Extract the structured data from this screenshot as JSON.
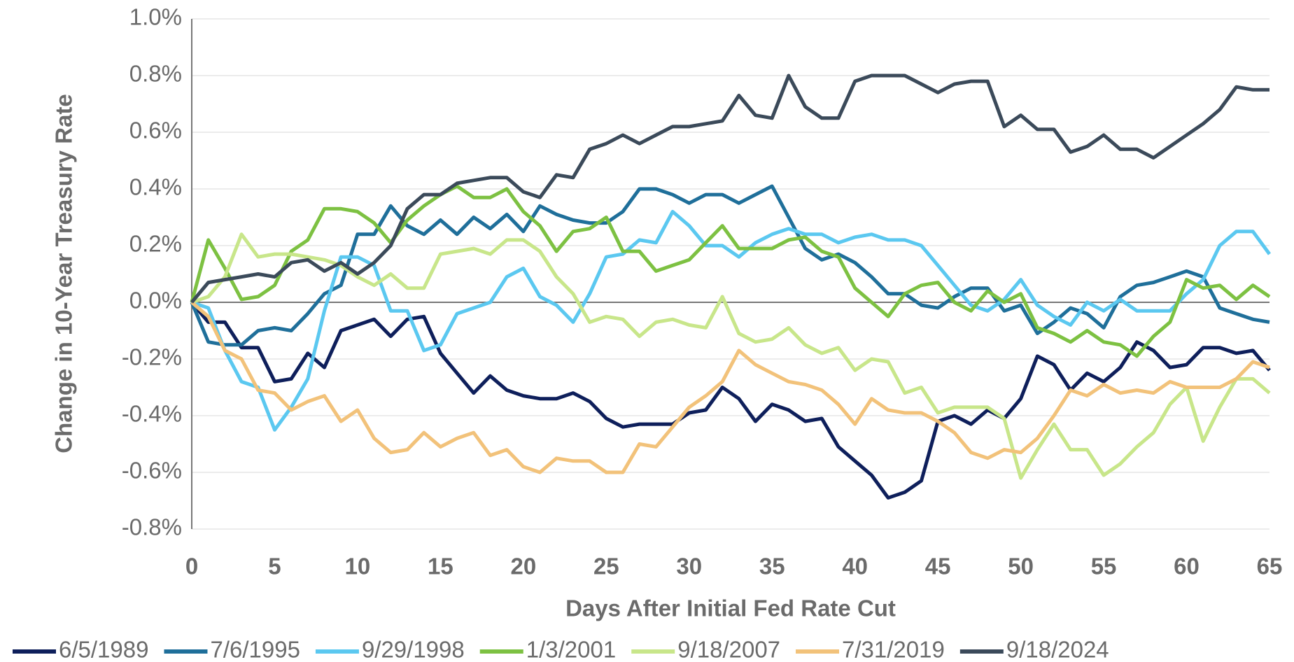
{
  "chart_data": {
    "type": "line",
    "x_label": "Days After Initial Fed Rate Cut",
    "y_label": "Change in 10-Year Treasury Rate",
    "x": [
      0,
      1,
      2,
      3,
      4,
      5,
      6,
      7,
      8,
      9,
      10,
      11,
      12,
      13,
      14,
      15,
      16,
      17,
      18,
      19,
      20,
      21,
      22,
      23,
      24,
      25,
      26,
      27,
      28,
      29,
      30,
      31,
      32,
      33,
      34,
      35,
      36,
      37,
      38,
      39,
      40,
      41,
      42,
      43,
      44,
      45,
      46,
      47,
      48,
      49,
      50,
      51,
      52,
      53,
      54,
      55,
      56,
      57,
      58,
      59,
      60,
      61,
      62,
      63,
      64,
      65
    ],
    "xlim": [
      0,
      65
    ],
    "xticks": [
      0,
      5,
      10,
      15,
      20,
      25,
      30,
      35,
      40,
      45,
      50,
      55,
      60,
      65
    ],
    "ylim": [
      -0.8,
      1.0
    ],
    "yticks": [
      {
        "value": -0.8,
        "label": "-0.8%"
      },
      {
        "value": -0.6,
        "label": "-0.6%"
      },
      {
        "value": -0.4,
        "label": "-0.4%"
      },
      {
        "value": -0.2,
        "label": "-0.2%"
      },
      {
        "value": 0,
        "label": "0.0%"
      },
      {
        "value": 0.2,
        "label": "0.2%"
      },
      {
        "value": 0.4,
        "label": "0.4%"
      },
      {
        "value": 0.6,
        "label": "0.6%"
      },
      {
        "value": 0.8,
        "label": "0.8%"
      },
      {
        "value": 1.0,
        "label": "1.0%"
      }
    ],
    "grid": true,
    "legend": "bottom",
    "series": [
      {
        "name": "6/5/1989",
        "color": "#0e1f5b",
        "values": [
          0,
          -0.07,
          -0.07,
          -0.16,
          -0.16,
          -0.28,
          -0.27,
          -0.18,
          -0.23,
          -0.1,
          -0.08,
          -0.06,
          -0.12,
          -0.06,
          -0.05,
          -0.18,
          -0.25,
          -0.32,
          -0.26,
          -0.31,
          -0.33,
          -0.34,
          -0.34,
          -0.32,
          -0.35,
          -0.41,
          -0.44,
          -0.43,
          -0.43,
          -0.43,
          -0.39,
          -0.38,
          -0.3,
          -0.34,
          -0.42,
          -0.36,
          -0.38,
          -0.42,
          -0.41,
          -0.51,
          -0.56,
          -0.61,
          -0.69,
          -0.67,
          -0.63,
          -0.42,
          -0.4,
          -0.43,
          -0.38,
          -0.41,
          -0.34,
          -0.19,
          -0.22,
          -0.31,
          -0.25,
          -0.28,
          -0.23,
          -0.14,
          -0.17,
          -0.23,
          -0.22,
          -0.16,
          -0.16,
          -0.18,
          -0.17,
          -0.24
        ]
      },
      {
        "name": "7/6/1995",
        "color": "#1f6f9a",
        "values": [
          0,
          -0.14,
          -0.15,
          -0.15,
          -0.1,
          -0.09,
          -0.1,
          -0.04,
          0.03,
          0.06,
          0.24,
          0.24,
          0.34,
          0.27,
          0.24,
          0.29,
          0.24,
          0.3,
          0.26,
          0.31,
          0.25,
          0.34,
          0.31,
          0.29,
          0.28,
          0.28,
          0.32,
          0.4,
          0.4,
          0.38,
          0.35,
          0.38,
          0.38,
          0.35,
          0.38,
          0.41,
          0.3,
          0.19,
          0.15,
          0.17,
          0.14,
          0.09,
          0.03,
          0.03,
          -0.01,
          -0.02,
          0.02,
          0.05,
          0.05,
          -0.03,
          -0.01,
          -0.11,
          -0.07,
          -0.02,
          -0.04,
          -0.09,
          0.02,
          0.06,
          0.07,
          0.09,
          0.11,
          0.09,
          -0.02,
          -0.04,
          -0.06,
          -0.07
        ]
      },
      {
        "name": "9/29/1998",
        "color": "#5bc8f0",
        "values": [
          0,
          -0.02,
          -0.17,
          -0.28,
          -0.3,
          -0.45,
          -0.37,
          -0.27,
          -0.03,
          0.16,
          0.16,
          0.13,
          -0.03,
          -0.03,
          -0.17,
          -0.15,
          -0.04,
          -0.02,
          0.0,
          0.09,
          0.12,
          0.02,
          -0.01,
          -0.07,
          0.03,
          0.16,
          0.17,
          0.22,
          0.21,
          0.32,
          0.27,
          0.2,
          0.2,
          0.16,
          0.21,
          0.24,
          0.26,
          0.24,
          0.24,
          0.21,
          0.23,
          0.24,
          0.22,
          0.22,
          0.2,
          0.13,
          0.06,
          -0.01,
          -0.03,
          0.01,
          0.08,
          -0.01,
          -0.05,
          -0.08,
          0.0,
          -0.03,
          0.01,
          -0.03,
          -0.03,
          -0.03,
          0.03,
          0.08,
          0.2,
          0.25,
          0.25,
          0.17
        ]
      },
      {
        "name": "1/3/2001",
        "color": "#7dc142",
        "values": [
          0,
          0.22,
          0.12,
          0.01,
          0.02,
          0.06,
          0.18,
          0.22,
          0.33,
          0.33,
          0.32,
          0.28,
          0.21,
          0.29,
          0.34,
          0.38,
          0.41,
          0.37,
          0.37,
          0.4,
          0.32,
          0.27,
          0.18,
          0.25,
          0.26,
          0.3,
          0.18,
          0.18,
          0.11,
          0.13,
          0.15,
          0.21,
          0.27,
          0.19,
          0.19,
          0.19,
          0.22,
          0.23,
          0.18,
          0.16,
          0.05,
          0.0,
          -0.05,
          0.03,
          0.06,
          0.07,
          0.0,
          -0.03,
          0.04,
          0.0,
          0.03,
          -0.09,
          -0.11,
          -0.14,
          -0.1,
          -0.14,
          -0.15,
          -0.19,
          -0.12,
          -0.07,
          0.08,
          0.05,
          0.06,
          0.01,
          0.06,
          0.02
        ]
      },
      {
        "name": "9/18/2007",
        "color": "#c8e68a",
        "values": [
          0,
          0.02,
          0.09,
          0.24,
          0.16,
          0.17,
          0.17,
          0.16,
          0.15,
          0.13,
          0.09,
          0.06,
          0.1,
          0.05,
          0.05,
          0.17,
          0.18,
          0.19,
          0.17,
          0.22,
          0.22,
          0.18,
          0.09,
          0.03,
          -0.07,
          -0.05,
          -0.06,
          -0.12,
          -0.07,
          -0.06,
          -0.08,
          -0.09,
          0.02,
          -0.11,
          -0.14,
          -0.13,
          -0.09,
          -0.15,
          -0.18,
          -0.16,
          -0.24,
          -0.2,
          -0.21,
          -0.32,
          -0.3,
          -0.39,
          -0.37,
          -0.37,
          -0.37,
          -0.41,
          -0.62,
          -0.52,
          -0.43,
          -0.52,
          -0.52,
          -0.61,
          -0.57,
          -0.51,
          -0.46,
          -0.36,
          -0.3,
          -0.49,
          -0.37,
          -0.27,
          -0.27,
          -0.32
        ]
      },
      {
        "name": "7/31/2019",
        "color": "#f2c27a",
        "values": [
          0,
          -0.05,
          -0.17,
          -0.2,
          -0.31,
          -0.32,
          -0.38,
          -0.35,
          -0.33,
          -0.42,
          -0.38,
          -0.48,
          -0.53,
          -0.52,
          -0.46,
          -0.51,
          -0.48,
          -0.46,
          -0.54,
          -0.52,
          -0.58,
          -0.6,
          -0.55,
          -0.56,
          -0.56,
          -0.6,
          -0.6,
          -0.5,
          -0.51,
          -0.44,
          -0.37,
          -0.33,
          -0.28,
          -0.17,
          -0.22,
          -0.25,
          -0.28,
          -0.29,
          -0.31,
          -0.36,
          -0.43,
          -0.34,
          -0.38,
          -0.39,
          -0.39,
          -0.42,
          -0.46,
          -0.53,
          -0.55,
          -0.52,
          -0.53,
          -0.48,
          -0.4,
          -0.31,
          -0.33,
          -0.29,
          -0.32,
          -0.31,
          -0.32,
          -0.28,
          -0.3,
          -0.3,
          -0.3,
          -0.27,
          -0.21,
          -0.23
        ]
      },
      {
        "name": "9/18/2024",
        "color": "#3b4a5a",
        "values": [
          0,
          0.07,
          0.08,
          0.09,
          0.1,
          0.09,
          0.14,
          0.15,
          0.11,
          0.14,
          0.1,
          0.14,
          0.2,
          0.33,
          0.38,
          0.38,
          0.42,
          0.43,
          0.44,
          0.44,
          0.39,
          0.37,
          0.45,
          0.44,
          0.54,
          0.56,
          0.59,
          0.56,
          0.59,
          0.62,
          0.62,
          0.63,
          0.64,
          0.73,
          0.66,
          0.65,
          0.8,
          0.69,
          0.65,
          0.65,
          0.78,
          0.8,
          0.8,
          0.8,
          0.77,
          0.74,
          0.77,
          0.78,
          0.78,
          0.62,
          0.66,
          0.61,
          0.61,
          0.53,
          0.55,
          0.59,
          0.54,
          0.54,
          0.51,
          0.55,
          0.59,
          0.63,
          0.68,
          0.76,
          0.75,
          0.75
        ]
      }
    ]
  }
}
